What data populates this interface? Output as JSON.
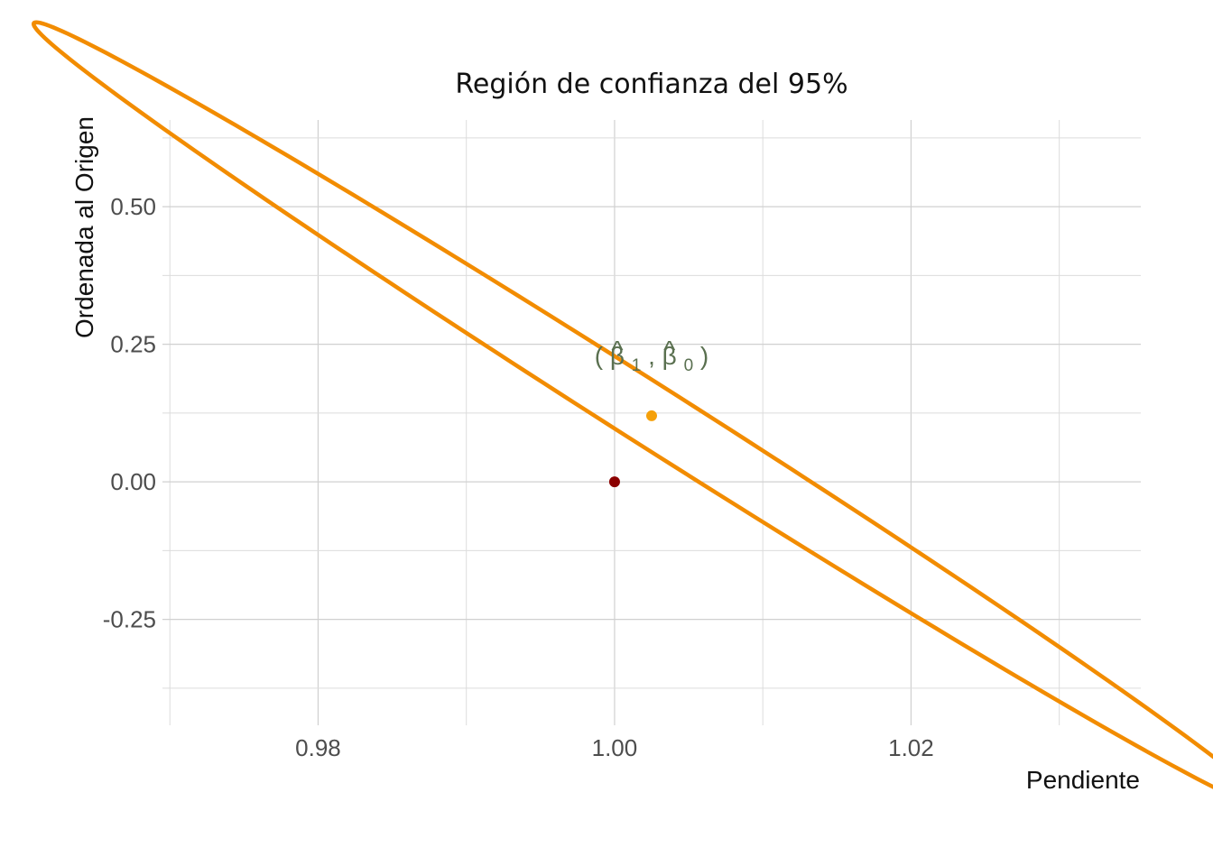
{
  "chart_data": {
    "type": "scatter",
    "title": "Región de confianza del 95%",
    "xlabel": "Pendiente",
    "ylabel": "Ordenada al Origen",
    "xlim": [
      0.9695,
      1.0355
    ],
    "ylim": [
      -0.4424,
      0.6576
    ],
    "x_ticks": [
      0.98,
      1.0,
      1.02
    ],
    "x_tick_labels": [
      "0.98",
      "1.00",
      "1.02"
    ],
    "y_ticks": [
      -0.25,
      0.0,
      0.25,
      0.5
    ],
    "y_tick_labels": [
      "-0.25",
      "0.00",
      "0.25",
      "0.50"
    ],
    "grid": true,
    "legend": "none",
    "confidence_ellipse": {
      "center": [
        1.0025,
        0.12
      ],
      "vertices": [
        [
          0.9744,
          0.6486
        ],
        [
          1.0306,
          -0.4086
        ],
        [
          0.9717,
          0.6016
        ],
        [
          1.0333,
          -0.3616
        ]
      ],
      "color": "#f28c00"
    },
    "points": [
      {
        "x": 1.0025,
        "y": 0.12,
        "color": "#f5a00a"
      },
      {
        "x": 1.0,
        "y": 0.0,
        "color": "#8b0000"
      }
    ],
    "annotation": {
      "x": 1.0025,
      "y": 0.2,
      "open": "(",
      "hat": "^",
      "b1": "β",
      "s1": "1",
      "sep": ",",
      "b0": "β",
      "s0": "0",
      "close": ")",
      "color": "#5a7050"
    }
  }
}
